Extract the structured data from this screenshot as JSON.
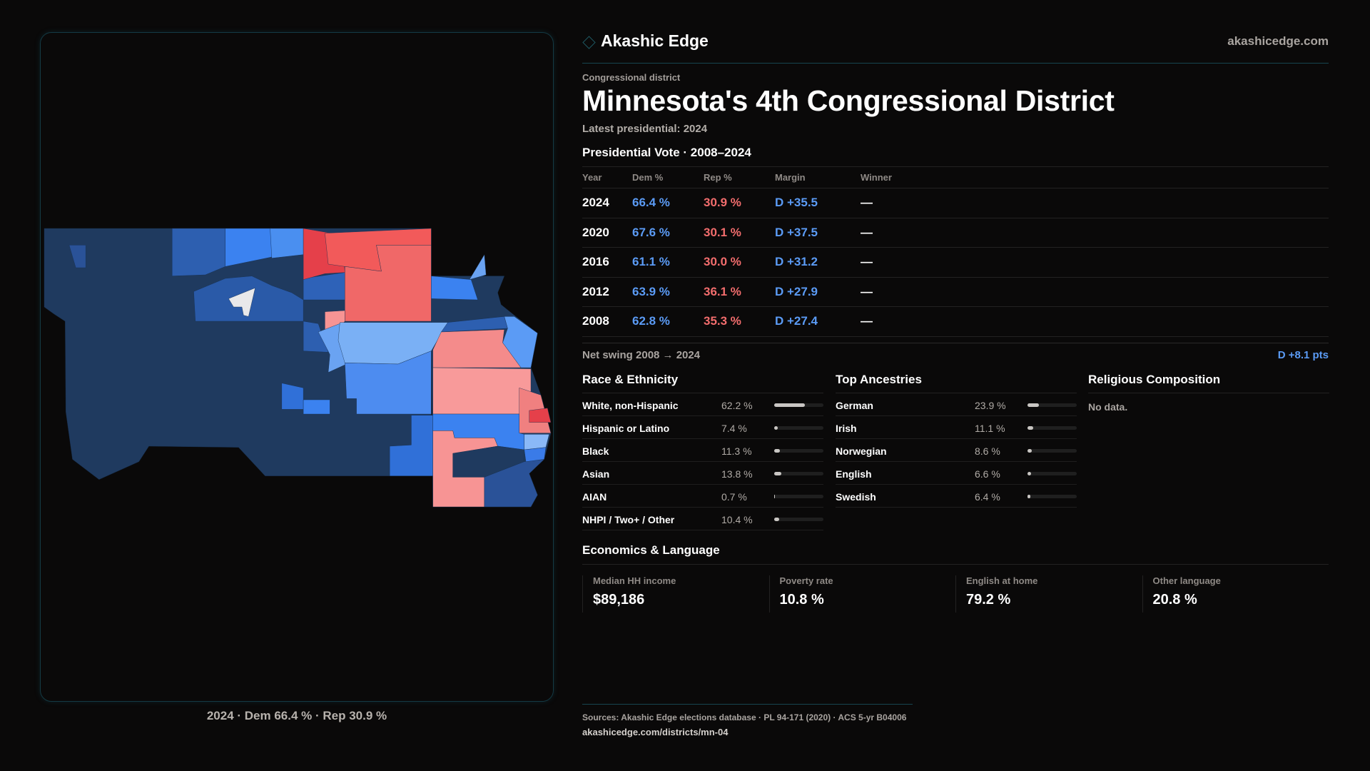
{
  "brand": {
    "name": "Akashic Edge",
    "site": "akashicedge.com",
    "logo_icon": "diamond-icon"
  },
  "header": {
    "kicker": "Congressional district",
    "title": "Minnesota's 4th Congressional District",
    "latest": "Latest presidential: 2024"
  },
  "votes": {
    "title": "Presidential Vote · 2008–2024",
    "columns": [
      "Year",
      "Dem %",
      "Rep %",
      "Margin",
      "Winner"
    ],
    "rows": [
      {
        "year": "2024",
        "dem": "66.4 %",
        "rep": "30.9 %",
        "margin": "D +35.5",
        "winner": "—"
      },
      {
        "year": "2020",
        "dem": "67.6 %",
        "rep": "30.1 %",
        "margin": "D +37.5",
        "winner": "—"
      },
      {
        "year": "2016",
        "dem": "61.1 %",
        "rep": "30.0 %",
        "margin": "D +31.2",
        "winner": "—"
      },
      {
        "year": "2012",
        "dem": "63.9 %",
        "rep": "36.1 %",
        "margin": "D +27.9",
        "winner": "—"
      },
      {
        "year": "2008",
        "dem": "62.8 %",
        "rep": "35.3 %",
        "margin": "D +27.4",
        "winner": "—"
      }
    ],
    "swing_label": "Net swing 2008 → 2024",
    "swing_value": "D +8.1 pts"
  },
  "race": {
    "title": "Race & Ethnicity",
    "items": [
      {
        "label": "White, non-Hispanic",
        "value": "62.2 %",
        "pct": 62.2
      },
      {
        "label": "Hispanic or Latino",
        "value": "7.4 %",
        "pct": 7.4
      },
      {
        "label": "Black",
        "value": "11.3 %",
        "pct": 11.3
      },
      {
        "label": "Asian",
        "value": "13.8 %",
        "pct": 13.8
      },
      {
        "label": "AIAN",
        "value": "0.7 %",
        "pct": 0.7
      },
      {
        "label": "NHPI / Two+ / Other",
        "value": "10.4 %",
        "pct": 10.4
      }
    ]
  },
  "ancestry": {
    "title": "Top Ancestries",
    "items": [
      {
        "label": "German",
        "value": "23.9 %",
        "pct": 23.9
      },
      {
        "label": "Irish",
        "value": "11.1 %",
        "pct": 11.1
      },
      {
        "label": "Norwegian",
        "value": "8.6 %",
        "pct": 8.6
      },
      {
        "label": "English",
        "value": "6.6 %",
        "pct": 6.6
      },
      {
        "label": "Swedish",
        "value": "6.4 %",
        "pct": 6.4
      }
    ]
  },
  "religion": {
    "title": "Religious Composition",
    "empty": "No data."
  },
  "economics": {
    "title": "Economics & Language",
    "stats": [
      {
        "label": "Median HH income",
        "value": "$89,186"
      },
      {
        "label": "Poverty rate",
        "value": "10.8 %"
      },
      {
        "label": "English at home",
        "value": "79.2 %"
      },
      {
        "label": "Other language",
        "value": "20.8 %"
      }
    ]
  },
  "map": {
    "caption": "2024 · Dem 66.4 % · Rep 30.9 %"
  },
  "footer": {
    "sources": "Sources: Akashic Edge elections database · PL 94-171 (2020) · ACS 5-yr B04006",
    "url": "akashicedge.com/districts/mn-04"
  },
  "colors": {
    "dem": "#5b9bf5",
    "rep": "#f26d6d",
    "accent": "#174550",
    "background": "#0a0909"
  }
}
